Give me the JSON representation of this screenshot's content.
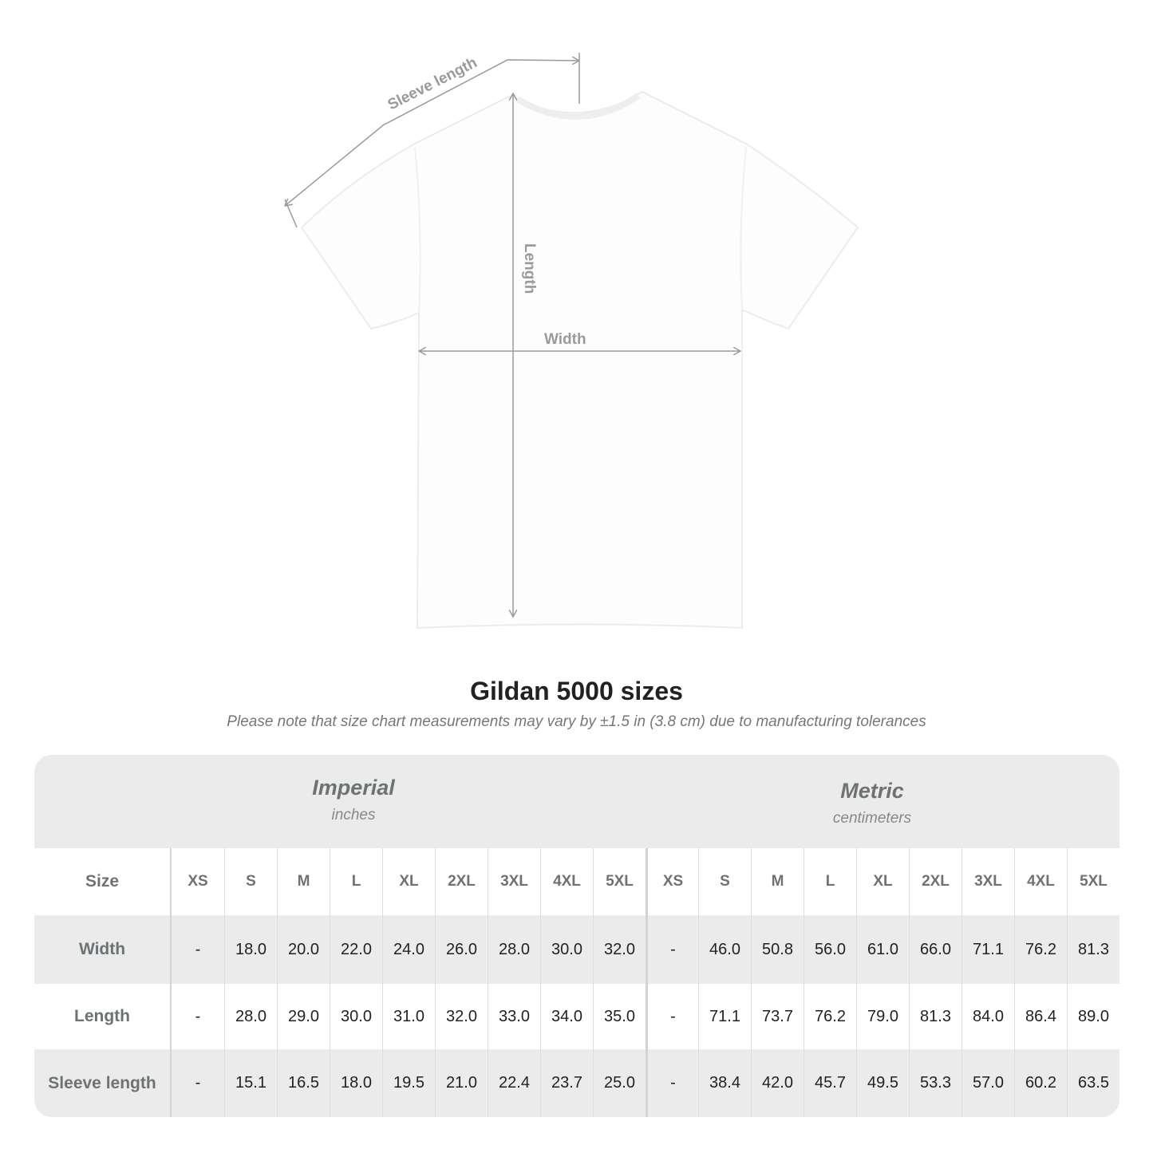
{
  "diagram": {
    "labels": {
      "sleeve": "Sleeve length",
      "length": "Length",
      "width": "Width"
    },
    "line_color": "#9a9a9a"
  },
  "title": "Gildan 5000 sizes",
  "note": "Please note that size chart measurements may vary by ±1.5 in (3.8 cm) due to manufacturing tolerances",
  "table": {
    "imperial": {
      "name": "Imperial",
      "unit": "inches"
    },
    "metric": {
      "name": "Metric",
      "unit": "centimeters"
    },
    "size_label": "Size",
    "sizes": [
      "XS",
      "S",
      "M",
      "L",
      "XL",
      "2XL",
      "3XL",
      "4XL",
      "5XL"
    ],
    "rows": [
      {
        "label": "Width",
        "imperial": [
          "-",
          "18.0",
          "20.0",
          "22.0",
          "24.0",
          "26.0",
          "28.0",
          "30.0",
          "32.0"
        ],
        "metric": [
          "-",
          "46.0",
          "50.8",
          "56.0",
          "61.0",
          "66.0",
          "71.1",
          "76.2",
          "81.3"
        ]
      },
      {
        "label": "Length",
        "imperial": [
          "-",
          "28.0",
          "29.0",
          "30.0",
          "31.0",
          "32.0",
          "33.0",
          "34.0",
          "35.0"
        ],
        "metric": [
          "-",
          "71.1",
          "73.7",
          "76.2",
          "79.0",
          "81.3",
          "84.0",
          "86.4",
          "89.0"
        ]
      },
      {
        "label": "Sleeve length",
        "imperial": [
          "-",
          "15.1",
          "16.5",
          "18.0",
          "19.5",
          "21.0",
          "22.4",
          "23.7",
          "25.0"
        ],
        "metric": [
          "-",
          "38.4",
          "42.0",
          "45.7",
          "49.5",
          "53.3",
          "57.0",
          "60.2",
          "63.5"
        ]
      }
    ],
    "colors": {
      "band": "#ebebeb",
      "label": "#6d7275"
    }
  }
}
